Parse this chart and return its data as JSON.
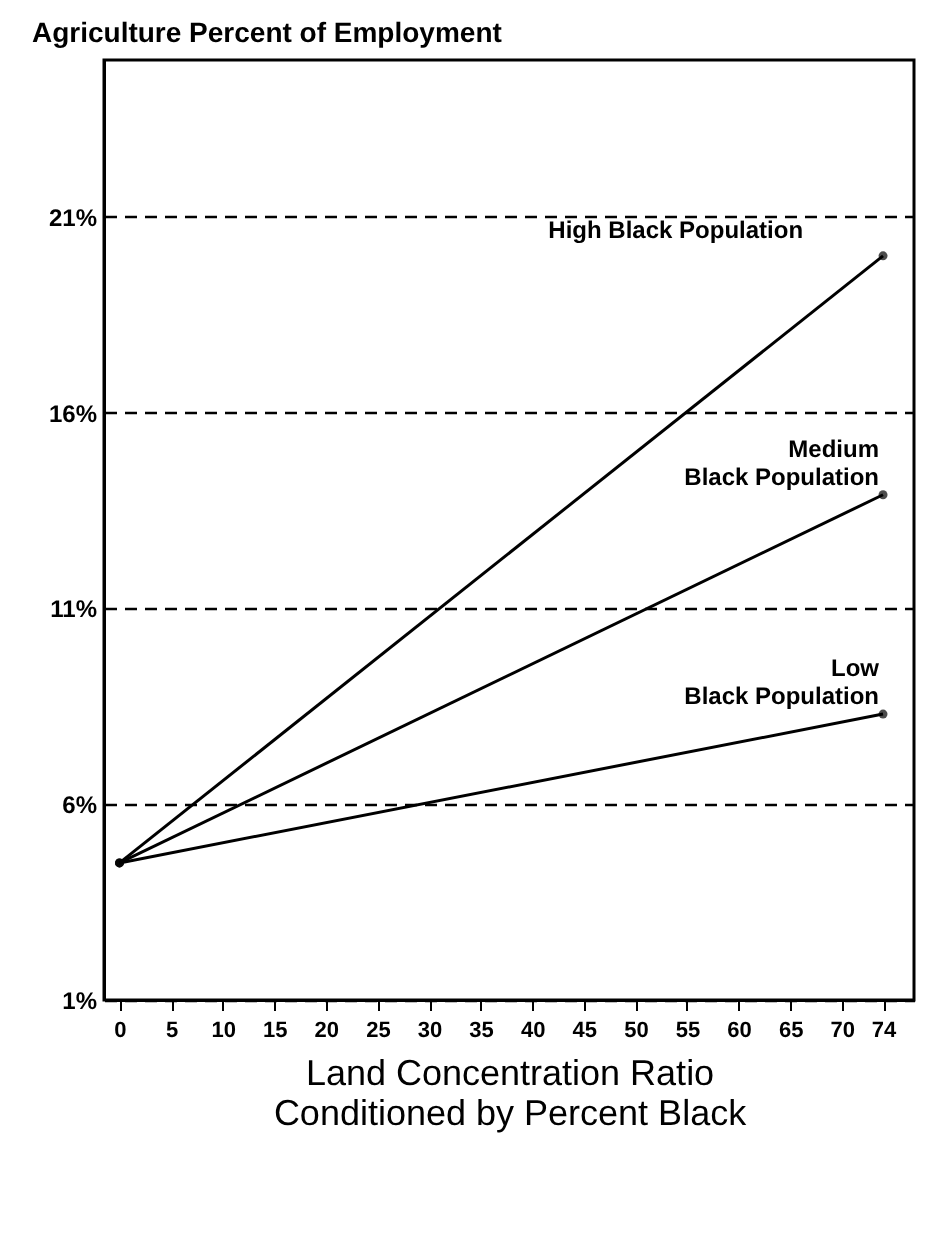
{
  "chart_data": {
    "type": "line",
    "title": "Agriculture Percent of Employment",
    "xlabel": "Land Concentration Ratio",
    "annotations": [
      "Conditioned by Percent Black"
    ],
    "x": [
      0,
      74
    ],
    "series": [
      {
        "name": "High Black Population",
        "color": "#000000",
        "values": [
          4.5,
          20
        ]
      },
      {
        "name": "Medium Black Population",
        "color": "#000000",
        "values": [
          4.5,
          13.9
        ]
      },
      {
        "name": "Low Black Population",
        "color": "#000000",
        "values": [
          4.5,
          8.3
        ]
      }
    ],
    "xlim": [
      -1.5,
      77
    ],
    "xticks": [
      0,
      5,
      10,
      15,
      20,
      25,
      30,
      35,
      40,
      45,
      50,
      55,
      60,
      65,
      70,
      74
    ],
    "ylim": [
      1,
      25
    ],
    "yticks": [
      {
        "value": 1,
        "label": "1%"
      },
      {
        "value": 6,
        "label": "6%"
      },
      {
        "value": 11,
        "label": "11%"
      },
      {
        "value": 16,
        "label": "16%"
      },
      {
        "value": 21,
        "label": "21%"
      }
    ],
    "grid": "y",
    "marker": "circle",
    "line_style": "solid",
    "legend": false
  }
}
